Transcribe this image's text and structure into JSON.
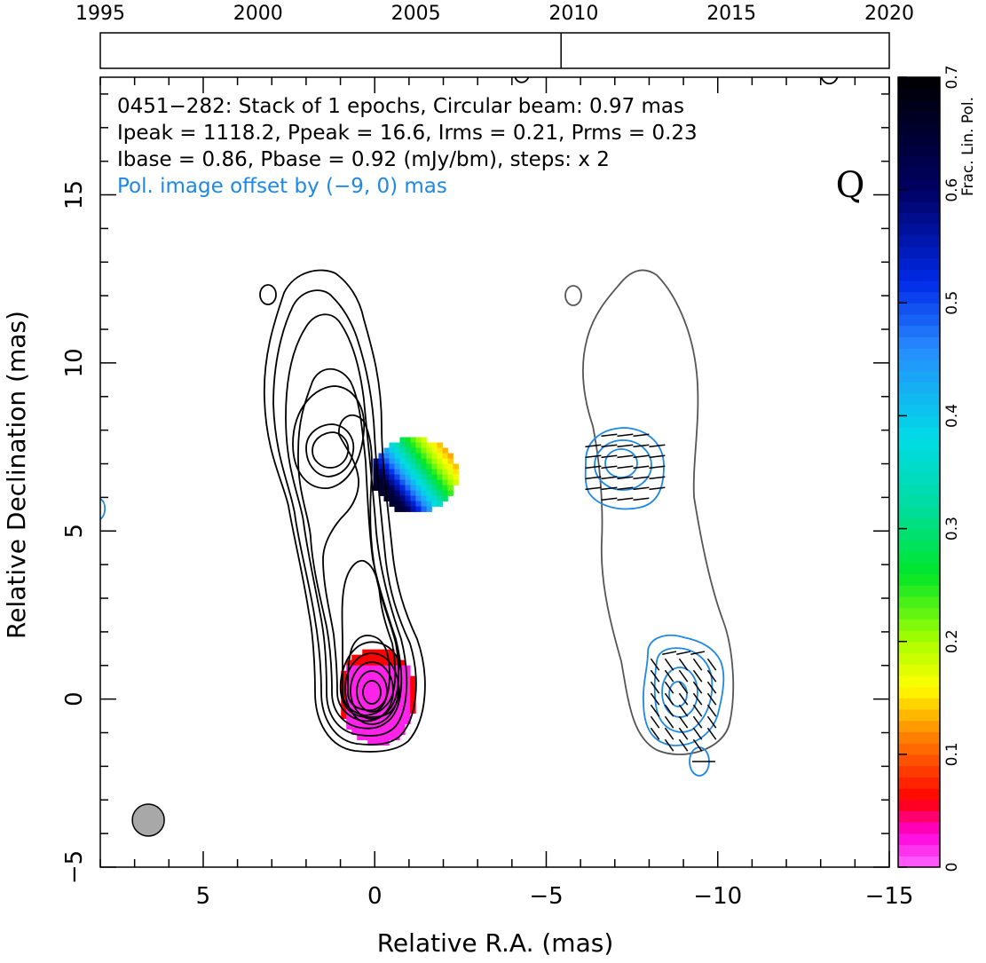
{
  "chart_data": {
    "type": "heatmap",
    "source_name": "0451−282",
    "info_lines": [
      "0451−282: Stack of 1 epochs, Circular beam: 0.97 mas",
      "Ipeak = 1118.2, Ppeak = 16.6, Irms = 0.21, Prms = 0.23",
      "Ibase = 0.86, Pbase = 0.92 (mJy/bm), steps: x 2"
    ],
    "offset_note": "Pol. image offset by (−9, 0) mas",
    "stokes_label": "Q",
    "xlabel": "Relative R.A. (mas)",
    "ylabel": "Relative Declination (mas)",
    "xlim": [
      8,
      -15
    ],
    "ylim": [
      -5,
      18.5
    ],
    "x_ticks": [
      5,
      0,
      -5,
      -10,
      -15
    ],
    "x_tick_labels": [
      "5",
      "0",
      "−5",
      "−10",
      "−15"
    ],
    "y_ticks": [
      -5,
      0,
      5,
      10,
      15
    ],
    "y_tick_labels": [
      "−5",
      "0",
      "5",
      "10",
      "15"
    ],
    "colorbar": {
      "label": "Frac. Lin. Pol.",
      "range": [
        0,
        0.7
      ],
      "ticks": [
        0,
        0.1,
        0.2,
        0.3,
        0.4,
        0.5,
        0.6,
        0.7
      ],
      "tick_labels": [
        "0",
        "0.1",
        "0.2",
        "0.3",
        "0.4",
        "0.5",
        "0.6",
        "0.7"
      ]
    },
    "timeline": {
      "year_range": [
        1995,
        2020
      ],
      "year_labels": [
        "1995",
        "2000",
        "2005",
        "2010",
        "2015",
        "2020"
      ],
      "epochs": [
        2009.6
      ]
    },
    "beam": {
      "ra": 6.6,
      "dec": -3.6,
      "diameter_mas": 0.97
    },
    "features": {
      "core": {
        "ra": 0,
        "dec": 0,
        "frac_pol": 0.02
      },
      "knot": {
        "ra": -1.3,
        "dec": 7.0,
        "frac_pol_range": [
          0.1,
          0.65
        ]
      },
      "pol_core": {
        "ra": -9,
        "dec": 0
      },
      "pol_knot": {
        "ra": -7.3,
        "dec": 6.9
      }
    },
    "colors": {
      "stokes_i_contour": "#000000",
      "stokes_i_shifted": "#555555",
      "pol_contour": "#1e88e5",
      "evpa": "#000000",
      "beam": "#a8a8a8"
    }
  }
}
